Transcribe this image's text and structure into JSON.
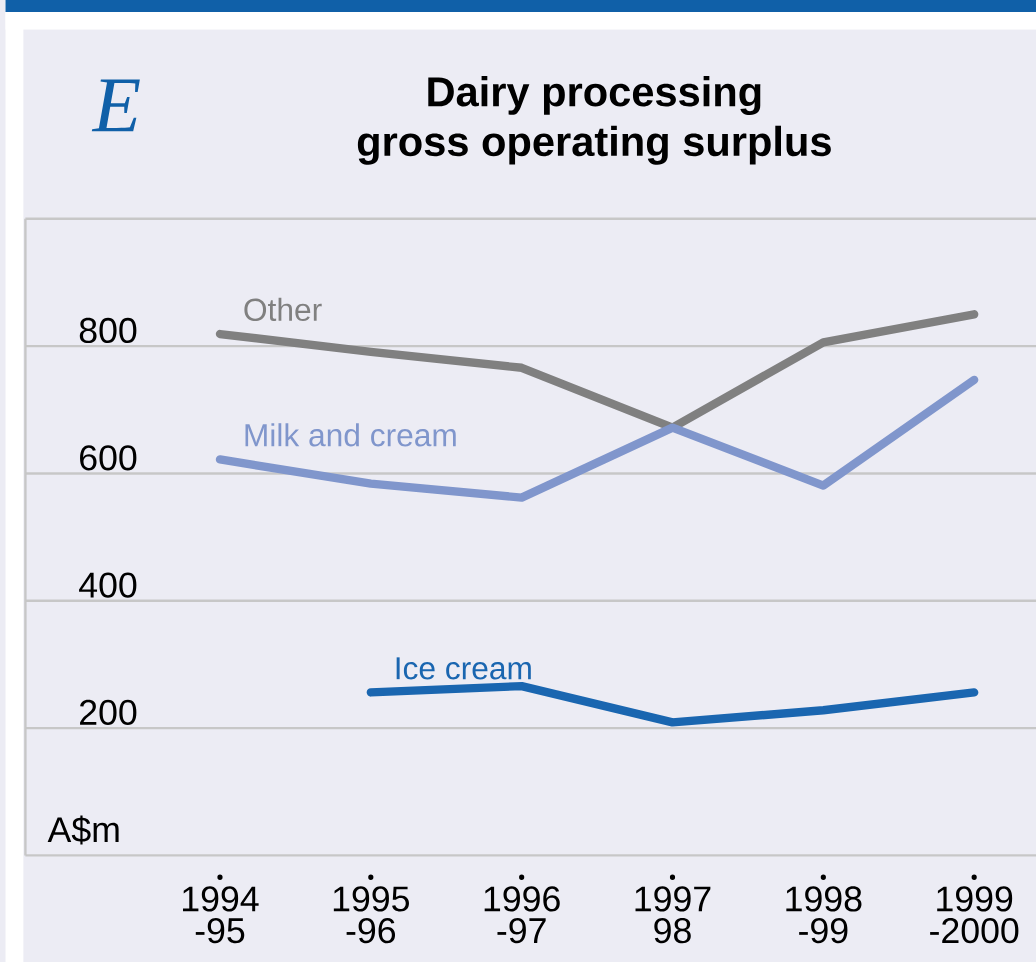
{
  "chart_data": {
    "type": "line",
    "title": "Dairy processing",
    "subtitle": "gross operating surplus",
    "ylabel": "A$m",
    "annotations": [
      "E"
    ],
    "categories": [
      "1994 -95",
      "1995 -96",
      "1996 -97",
      "1997 98",
      "1998 -99",
      "1999 -2000"
    ],
    "series": [
      {
        "name": "Other",
        "color": "#808080",
        "values": [
          819,
          791,
          766,
          672,
          806,
          850
        ]
      },
      {
        "name": "Milk and cream",
        "color": "#8096cc",
        "values": [
          622,
          584,
          562,
          672,
          581,
          747
        ]
      },
      {
        "name": "Ice cream",
        "color": "#1a66b0",
        "values": [
          null,
          256,
          266,
          209,
          228,
          256
        ]
      }
    ],
    "ylim": [
      0,
      1000
    ],
    "yticks": [
      {
        "value": 0,
        "label": null
      },
      200,
      400,
      600,
      800,
      {
        "value": 1000,
        "label": null
      }
    ],
    "grid": "y"
  }
}
